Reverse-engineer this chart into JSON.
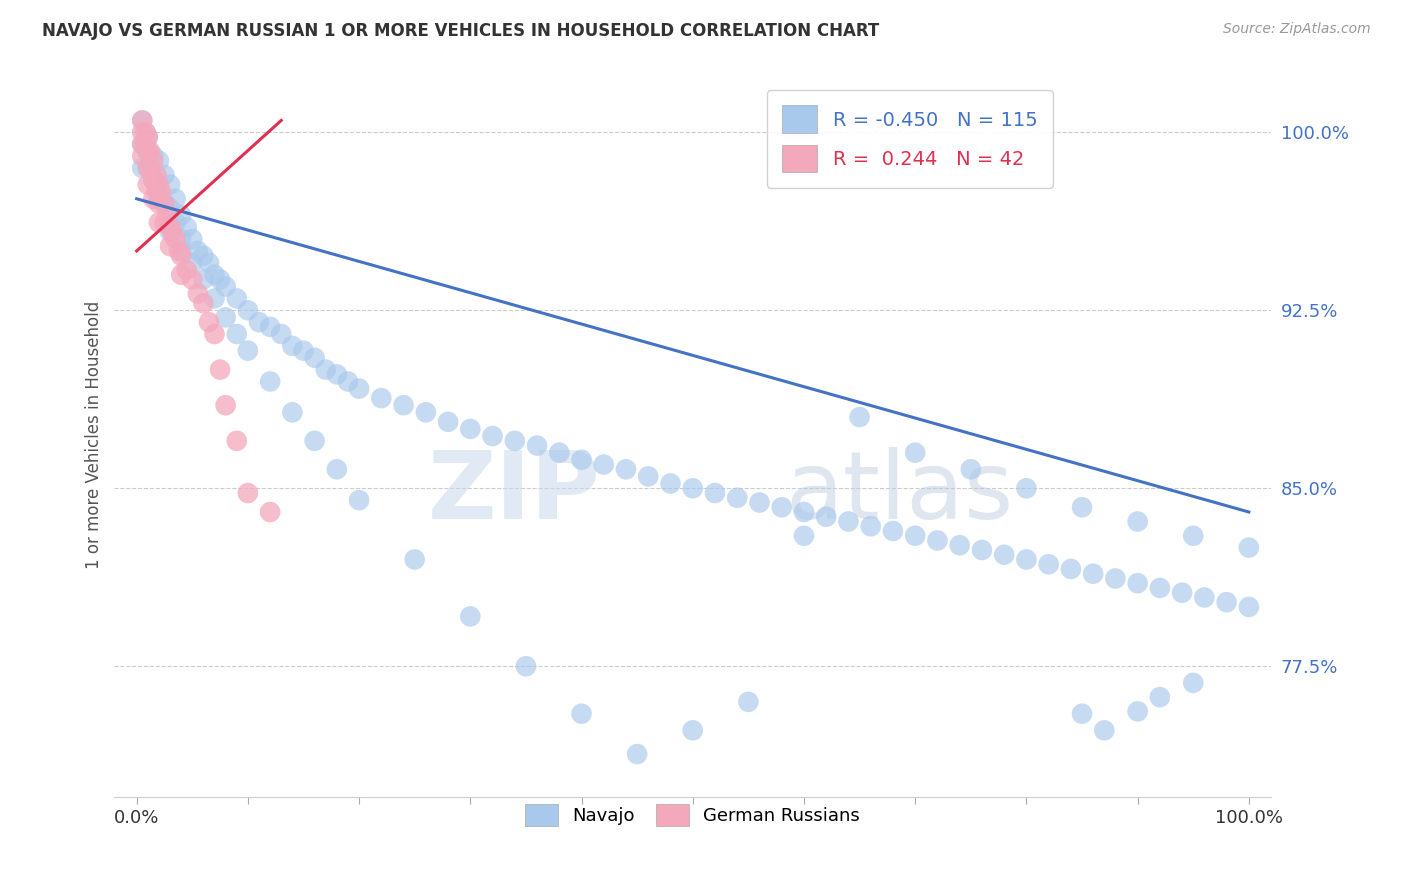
{
  "title": "NAVAJO VS GERMAN RUSSIAN 1 OR MORE VEHICLES IN HOUSEHOLD CORRELATION CHART",
  "source": "Source: ZipAtlas.com",
  "ylabel": "1 or more Vehicles in Household",
  "ytick_vals": [
    0.775,
    0.85,
    0.925,
    1.0
  ],
  "ytick_labels": [
    "77.5%",
    "85.0%",
    "92.5%",
    "100.0%"
  ],
  "ylim": [
    0.72,
    1.025
  ],
  "xlim": [
    -0.02,
    1.02
  ],
  "navajo_R": -0.45,
  "navajo_N": 115,
  "german_russian_R": 0.244,
  "german_russian_N": 42,
  "navajo_color": "#A8C8EC",
  "german_russian_color": "#F4A8BC",
  "navajo_line_color": "#4472C4",
  "german_russian_line_color": "#E03050",
  "watermark_zip": "ZIP",
  "watermark_atlas": "atlas",
  "background_color": "#FFFFFF",
  "grid_color": "#CCCCCC",
  "navajo_x": [
    0.005,
    0.005,
    0.005,
    0.008,
    0.01,
    0.01,
    0.01,
    0.015,
    0.015,
    0.02,
    0.02,
    0.025,
    0.025,
    0.03,
    0.03,
    0.03,
    0.035,
    0.035,
    0.04,
    0.04,
    0.045,
    0.05,
    0.055,
    0.06,
    0.065,
    0.07,
    0.075,
    0.08,
    0.09,
    0.1,
    0.11,
    0.12,
    0.13,
    0.14,
    0.15,
    0.16,
    0.17,
    0.18,
    0.19,
    0.2,
    0.22,
    0.24,
    0.26,
    0.28,
    0.3,
    0.32,
    0.34,
    0.36,
    0.38,
    0.4,
    0.42,
    0.44,
    0.46,
    0.48,
    0.5,
    0.52,
    0.54,
    0.56,
    0.58,
    0.6,
    0.62,
    0.64,
    0.66,
    0.68,
    0.7,
    0.72,
    0.74,
    0.76,
    0.78,
    0.8,
    0.82,
    0.84,
    0.86,
    0.88,
    0.9,
    0.92,
    0.94,
    0.96,
    0.98,
    1.0,
    0.02,
    0.03,
    0.04,
    0.05,
    0.06,
    0.07,
    0.08,
    0.09,
    0.1,
    0.12,
    0.14,
    0.16,
    0.18,
    0.2,
    0.25,
    0.3,
    0.35,
    0.4,
    0.45,
    0.5,
    0.55,
    0.6,
    0.65,
    0.7,
    0.75,
    0.8,
    0.85,
    0.9,
    0.95,
    1.0,
    0.85,
    0.87,
    0.9,
    0.92,
    0.95
  ],
  "navajo_y": [
    1.005,
    0.995,
    0.985,
    1.0,
    0.998,
    0.992,
    0.985,
    0.99,
    0.98,
    0.988,
    0.975,
    0.982,
    0.97,
    0.978,
    0.968,
    0.958,
    0.972,
    0.962,
    0.965,
    0.955,
    0.96,
    0.955,
    0.95,
    0.948,
    0.945,
    0.94,
    0.938,
    0.935,
    0.93,
    0.925,
    0.92,
    0.918,
    0.915,
    0.91,
    0.908,
    0.905,
    0.9,
    0.898,
    0.895,
    0.892,
    0.888,
    0.885,
    0.882,
    0.878,
    0.875,
    0.872,
    0.87,
    0.868,
    0.865,
    0.862,
    0.86,
    0.858,
    0.855,
    0.852,
    0.85,
    0.848,
    0.846,
    0.844,
    0.842,
    0.84,
    0.838,
    0.836,
    0.834,
    0.832,
    0.83,
    0.828,
    0.826,
    0.824,
    0.822,
    0.82,
    0.818,
    0.816,
    0.814,
    0.812,
    0.81,
    0.808,
    0.806,
    0.804,
    0.802,
    0.8,
    0.972,
    0.96,
    0.95,
    0.945,
    0.938,
    0.93,
    0.922,
    0.915,
    0.908,
    0.895,
    0.882,
    0.87,
    0.858,
    0.845,
    0.82,
    0.796,
    0.775,
    0.755,
    0.738,
    0.748,
    0.76,
    0.83,
    0.88,
    0.865,
    0.858,
    0.85,
    0.842,
    0.836,
    0.83,
    0.825,
    0.755,
    0.748,
    0.756,
    0.762,
    0.768
  ],
  "german_x": [
    0.005,
    0.005,
    0.005,
    0.005,
    0.008,
    0.008,
    0.01,
    0.01,
    0.01,
    0.01,
    0.012,
    0.012,
    0.015,
    0.015,
    0.015,
    0.018,
    0.018,
    0.02,
    0.02,
    0.02,
    0.022,
    0.025,
    0.025,
    0.028,
    0.03,
    0.03,
    0.032,
    0.035,
    0.038,
    0.04,
    0.04,
    0.045,
    0.05,
    0.055,
    0.06,
    0.065,
    0.07,
    0.075,
    0.08,
    0.09,
    0.1,
    0.12
  ],
  "german_y": [
    1.005,
    1.0,
    0.995,
    0.99,
    1.0,
    0.995,
    0.998,
    0.992,
    0.985,
    0.978,
    0.992,
    0.985,
    0.988,
    0.98,
    0.972,
    0.982,
    0.975,
    0.978,
    0.97,
    0.962,
    0.975,
    0.97,
    0.962,
    0.965,
    0.96,
    0.952,
    0.958,
    0.955,
    0.95,
    0.948,
    0.94,
    0.942,
    0.938,
    0.932,
    0.928,
    0.92,
    0.915,
    0.9,
    0.885,
    0.87,
    0.848,
    0.84
  ]
}
